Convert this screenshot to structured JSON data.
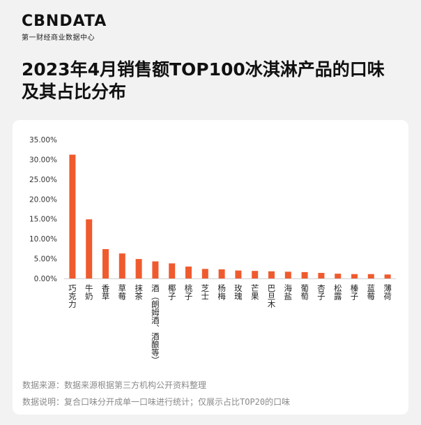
{
  "brand": {
    "logo": "CBNDATA",
    "subtitle": "第一财经商业数据中心"
  },
  "page_title": "2023年4月销售额TOP100冰淇淋产品的口味及其占比分布",
  "notes": {
    "source": "数据来源：数据来源根据第三方机构公开资料整理",
    "explanation": "数据说明：复合口味分开成单一口味进行统计；仅展示占比TOP20的口味"
  },
  "colors": {
    "bar": "#ef5b2e",
    "axis_text": "#333333"
  },
  "chart_data": {
    "type": "bar",
    "categories": [
      "巧克力",
      "牛奶",
      "香草",
      "草莓",
      "抹茶",
      "酒（朗姆酒、酒酿等）",
      "椰子",
      "桃子",
      "芝士",
      "杨梅",
      "玫瑰",
      "芒果",
      "巴旦木",
      "海盐",
      "葡萄",
      "杏子",
      "松露",
      "榛子",
      "蓝莓",
      "薄荷"
    ],
    "values": [
      31.2,
      14.9,
      7.4,
      6.3,
      4.9,
      4.3,
      3.8,
      3.0,
      2.4,
      2.3,
      2.0,
      1.9,
      1.8,
      1.7,
      1.6,
      1.4,
      1.2,
      1.1,
      1.1,
      1.0
    ],
    "ylim": [
      0,
      35
    ],
    "yticks": [
      "0.00%",
      "5.00%",
      "10.00%",
      "15.00%",
      "20.00%",
      "25.00%",
      "30.00%",
      "35.00%"
    ],
    "grid": false,
    "legend": false
  }
}
